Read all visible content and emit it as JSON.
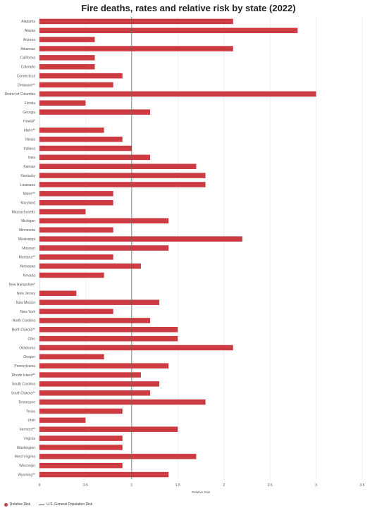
{
  "chart_data": {
    "type": "bar",
    "orientation": "horizontal",
    "title": "Fire deaths, rates and relative risk by state (2022)",
    "xlabel": "Relative Risk",
    "xlim": [
      0,
      3.5
    ],
    "xticks": [
      "0",
      "0.5",
      "1",
      "1.5",
      "2",
      "2.5",
      "3",
      "3.5"
    ],
    "grid": true,
    "legend_position": "bottom-left",
    "reference_line": {
      "name": "U.S. General Population Risk",
      "value": 1
    },
    "series": [
      {
        "name": "Relative Risk",
        "color": "#cc3b42",
        "values": [
          2.1,
          2.8,
          0.6,
          2.1,
          0.6,
          0.6,
          0.9,
          0.8,
          3.0,
          0.5,
          1.2,
          0,
          0.7,
          0.9,
          1.0,
          1.2,
          1.7,
          1.8,
          1.8,
          0.8,
          0.8,
          0.5,
          1.4,
          0.8,
          2.2,
          1.4,
          0.8,
          1.1,
          0.7,
          0,
          0.4,
          1.3,
          0.8,
          1.2,
          1.5,
          1.5,
          2.1,
          0.7,
          1.4,
          1.1,
          1.3,
          1.2,
          1.8,
          0.9,
          0.5,
          1.5,
          0.9,
          0.9,
          1.7,
          0.9,
          1.4
        ]
      }
    ],
    "categories": [
      "Alabama",
      "Alaska",
      "Arizona",
      "Arkansas",
      "California",
      "Colorado",
      "Connecticut",
      "Delaware**",
      "District of Columbia",
      "Florida",
      "Georgia",
      "Hawaii*",
      "Idaho**",
      "Illinois",
      "Indiana",
      "Iowa",
      "Kansas",
      "Kentucky",
      "Louisiana",
      "Maine**",
      "Maryland",
      "Massachusetts",
      "Michigan",
      "Minnesota",
      "Mississippi",
      "Missouri",
      "Montana**",
      "Nebraska",
      "Nevada",
      "New Hampshire*",
      "New Jersey",
      "New Mexico",
      "New York",
      "North Carolina",
      "North Dakota**",
      "Ohio",
      "Oklahoma",
      "Oregon",
      "Pennsylvania",
      "Rhode Island**",
      "South Carolina",
      "South Dakota**",
      "Tennessee",
      "Texas",
      "Utah",
      "Vermont**",
      "Virginia",
      "Washington",
      "West Virginia",
      "Wisconsin",
      "Wyoming**"
    ]
  }
}
